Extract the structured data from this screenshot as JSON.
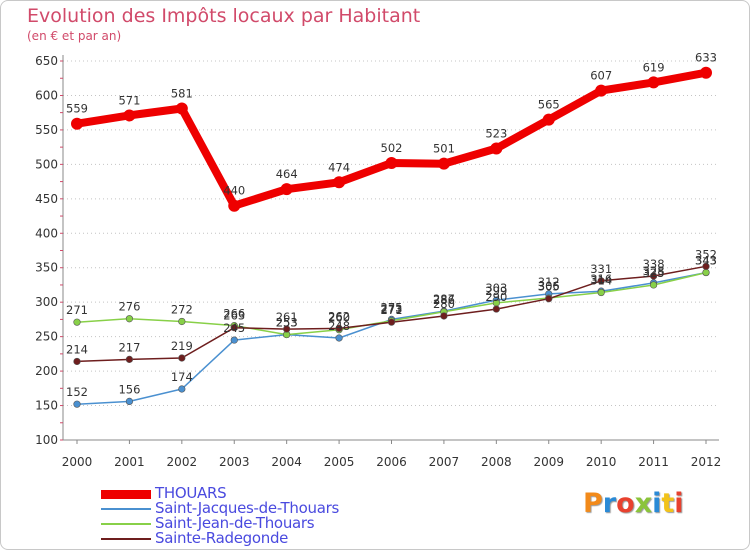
{
  "title": "Evolution des Impôts locaux par Habitant",
  "subtitle": "(en € et par an)",
  "logo": {
    "text": "Proxiti",
    "letter_colors": [
      "#f28a1a",
      "#2a8ad6",
      "#e8412e",
      "#8bc43a",
      "#2a8ad6",
      "#f2c31a",
      "#e8412e"
    ]
  },
  "chart_data": {
    "type": "line",
    "x": [
      "2000",
      "2001",
      "2002",
      "2003",
      "2004",
      "2005",
      "2006",
      "2007",
      "2008",
      "2009",
      "2010",
      "2011",
      "2012"
    ],
    "ylim": [
      100,
      650
    ],
    "yticks": [
      "100",
      "150",
      "200",
      "250",
      "300",
      "350",
      "400",
      "450",
      "500",
      "550",
      "600",
      "650"
    ],
    "grid": "horizontal dotted",
    "legend_position": "bottom-left",
    "series": [
      {
        "name": "THOUARS",
        "color": "#ee0000",
        "values": [
          559,
          571,
          581,
          440,
          464,
          474,
          502,
          501,
          523,
          565,
          607,
          619,
          633
        ],
        "labels": [
          "559",
          "571",
          "581",
          "440",
          "464",
          "474",
          "502",
          "501",
          "523",
          "565",
          "607",
          "619",
          "633"
        ]
      },
      {
        "name": "Saint-Jacques-de-Thouars",
        "color": "#4a90d0",
        "values": [
          152,
          156,
          174,
          245,
          253,
          248,
          275,
          287,
          303,
          312,
          316,
          328,
          343
        ],
        "labels": [
          "152",
          "156",
          "174",
          "245",
          "253",
          "248",
          "275",
          "287",
          "303",
          "312",
          "316",
          "328",
          "343"
        ]
      },
      {
        "name": "Saint-Jean-de-Thouars",
        "color": "#88d048",
        "values": [
          271,
          276,
          272,
          266,
          253,
          260,
          273,
          286,
          299,
          306,
          314,
          325,
          343
        ],
        "labels": [
          "271",
          "276",
          "272",
          "266",
          "253",
          "260",
          "273",
          "286",
          "299",
          "306",
          "314",
          "325",
          "343"
        ]
      },
      {
        "name": "Sainte-Radegonde",
        "color": "#6e1e1e",
        "values": [
          214,
          217,
          219,
          263,
          261,
          262,
          271,
          280,
          290,
          305,
          331,
          338,
          352
        ],
        "labels": [
          "214",
          "217",
          "219",
          "263",
          "261",
          "262",
          "271",
          "280",
          "290",
          "305",
          "331",
          "338",
          "352"
        ]
      }
    ]
  }
}
